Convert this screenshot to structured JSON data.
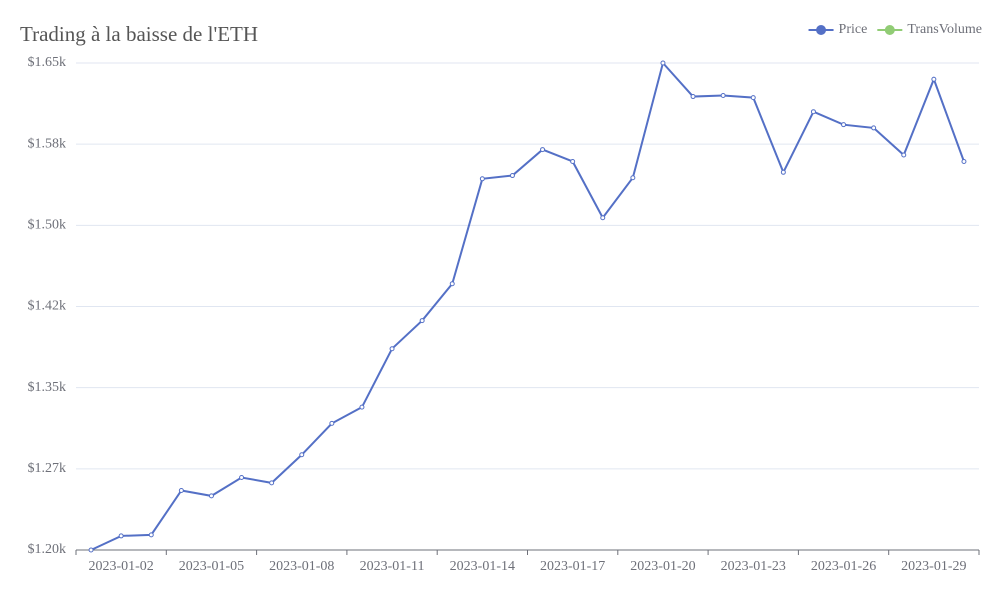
{
  "chart_data": {
    "type": "line",
    "title": "Trading à la baisse de l'ETH",
    "categories": [
      null,
      "2023-01-02",
      null,
      null,
      "2023-01-05",
      null,
      null,
      "2023-01-08",
      null,
      null,
      "2023-01-11",
      null,
      null,
      "2023-01-14",
      null,
      null,
      "2023-01-17",
      null,
      null,
      "2023-01-20",
      null,
      null,
      "2023-01-23",
      null,
      null,
      "2023-01-26",
      null,
      null,
      "2023-01-29",
      null
    ],
    "series": [
      {
        "name": "Price",
        "color": "#5470c6",
        "values": [
          1200,
          1213,
          1214,
          1255,
          1250,
          1267,
          1262,
          1288,
          1317,
          1332,
          1386,
          1412,
          1446,
          1543,
          1546,
          1570,
          1559,
          1507,
          1544,
          1650,
          1619,
          1620,
          1618,
          1549,
          1605,
          1593,
          1590,
          1565,
          1635,
          1559
        ]
      },
      {
        "name": "TransVolume",
        "color": "#91cc75",
        "values": [
          null,
          null,
          null,
          null,
          null,
          null,
          null,
          null,
          null,
          null,
          null,
          null,
          null,
          null,
          null,
          null,
          null,
          null,
          null,
          null,
          null,
          null,
          null,
          null,
          null,
          null,
          null,
          null,
          null,
          null
        ]
      }
    ],
    "ylim": [
      1200,
      1650
    ],
    "yticks": [
      {
        "value": 1200,
        "label": "$1.20k"
      },
      {
        "value": 1275,
        "label": "$1.27k"
      },
      {
        "value": 1350,
        "label": "$1.35k"
      },
      {
        "value": 1425,
        "label": "$1.42k"
      },
      {
        "value": 1500,
        "label": "$1.50k"
      },
      {
        "value": 1575,
        "label": "$1.58k"
      },
      {
        "value": 1650,
        "label": "$1.65k"
      }
    ],
    "grid": true,
    "legend": "top-right"
  }
}
